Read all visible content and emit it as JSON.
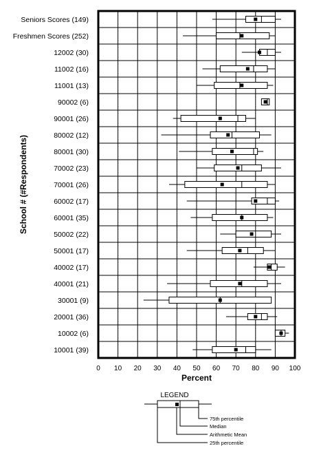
{
  "chart_data": {
    "type": "boxplot",
    "xlabel": "Percent",
    "ylabel": "School # (#Respondents)",
    "xlim": [
      0,
      100
    ],
    "xticks": [
      0,
      10,
      20,
      30,
      40,
      50,
      60,
      70,
      80,
      90,
      100
    ],
    "grid": true,
    "rows": [
      {
        "label": "Seniors Scores (149)",
        "whisker_low": 58,
        "q1": 75,
        "median": 83,
        "mean": 80,
        "q3": 90,
        "whisker_high": 93
      },
      {
        "label": "Freshmen Scores (252)",
        "whisker_low": 43,
        "q1": 60,
        "median": 72,
        "mean": 73,
        "q3": 87,
        "whisker_high": 90
      },
      {
        "label": "12002 (30)",
        "whisker_low": 73,
        "q1": 82,
        "median": 86,
        "mean": 82,
        "q3": 90,
        "whisker_high": 93
      },
      {
        "label": "11002 (16)",
        "whisker_low": 53,
        "q1": 62,
        "median": 79,
        "mean": 76,
        "q3": 86,
        "whisker_high": 90
      },
      {
        "label": "11001 (13)",
        "whisker_low": 50,
        "q1": 59,
        "median": 72,
        "mean": 73,
        "q3": 86,
        "whisker_high": 89
      },
      {
        "label": "90002 (6)",
        "whisker_low": 83,
        "q1": 83,
        "median": 86,
        "mean": 85,
        "q3": 87,
        "whisker_high": 87
      },
      {
        "label": "90001 (26)",
        "whisker_low": 38,
        "q1": 42,
        "median": 71,
        "mean": 62,
        "q3": 75,
        "whisker_high": 80
      },
      {
        "label": "80002 (12)",
        "whisker_low": 32,
        "q1": 57,
        "median": 68,
        "mean": 66,
        "q3": 82,
        "whisker_high": 88
      },
      {
        "label": "80001 (30)",
        "whisker_low": 41,
        "q1": 58,
        "median": 79,
        "mean": 68,
        "q3": 81,
        "whisker_high": 84
      },
      {
        "label": "70002 (23)",
        "whisker_low": 50,
        "q1": 59,
        "median": 73,
        "mean": 71,
        "q3": 83,
        "whisker_high": 93
      },
      {
        "label": "70001 (26)",
        "whisker_low": 36,
        "q1": 44,
        "median": 73,
        "mean": 63,
        "q3": 86,
        "whisker_high": 90
      },
      {
        "label": "60002 (17)",
        "whisker_low": 45,
        "q1": 78,
        "median": 86,
        "mean": 80,
        "q3": 90,
        "whisker_high": 92
      },
      {
        "label": "60001 (35)",
        "whisker_low": 47,
        "q1": 58,
        "median": 73,
        "mean": 73,
        "q3": 86,
        "whisker_high": 89
      },
      {
        "label": "50002 (22)",
        "whisker_low": 62,
        "q1": 70,
        "median": 80,
        "mean": 78,
        "q3": 88,
        "whisker_high": 93
      },
      {
        "label": "50001 (17)",
        "whisker_low": 45,
        "q1": 63,
        "median": 76,
        "mean": 72,
        "q3": 84,
        "whisker_high": 90
      },
      {
        "label": "40002 (17)",
        "whisker_low": 79,
        "q1": 86,
        "median": 88,
        "mean": 87,
        "q3": 91,
        "whisker_high": 95
      },
      {
        "label": "40001 (21)",
        "whisker_low": 35,
        "q1": 57,
        "median": 73,
        "mean": 72,
        "q3": 86,
        "whisker_high": 93
      },
      {
        "label": "30001 (9)",
        "whisker_low": 23,
        "q1": 36,
        "median": 62,
        "mean": 62,
        "q3": 88,
        "whisker_high": 88
      },
      {
        "label": "20001 (36)",
        "whisker_low": 65,
        "q1": 76,
        "median": 83,
        "mean": 80,
        "q3": 86,
        "whisker_high": 91
      },
      {
        "label": "10002 (6)",
        "whisker_low": 90,
        "q1": 90,
        "median": 93,
        "mean": 93,
        "q3": 95,
        "whisker_high": 97
      },
      {
        "label": "10001 (39)",
        "whisker_low": 48,
        "q1": 58,
        "median": 75,
        "mean": 70,
        "q3": 80,
        "whisker_high": 88
      }
    ]
  },
  "legend": {
    "title": "LEGEND",
    "items": [
      "75th percentile",
      "Median",
      "Arithmetic Mean",
      "25th percentile"
    ]
  }
}
